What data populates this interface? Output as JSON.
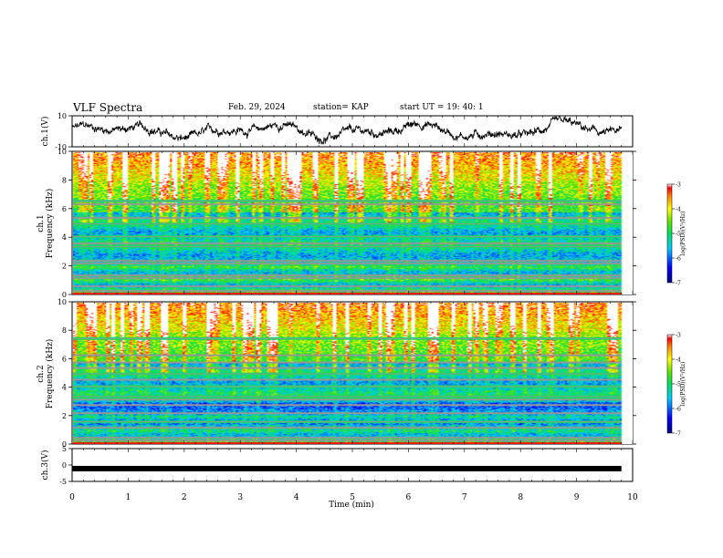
{
  "header": {
    "title": "VLF Spectra",
    "date": "Feb. 29, 2024",
    "station": "station= KAP",
    "start": "start  UT =  19: 40: 1"
  },
  "chart_data": [
    {
      "type": "line",
      "panel": "ch1-waveform",
      "ylabel": "ch.1(V)",
      "ylim": [
        -10,
        10
      ],
      "yticks": [
        "10",
        "-10"
      ],
      "xlim": [
        0,
        10
      ],
      "grid": false
    },
    {
      "type": "heatmap",
      "panel": "ch1-spectrogram",
      "ylabel": "ch.1\nFrequency (kHz)",
      "ylim": [
        0,
        10
      ],
      "yticks": [
        "0",
        "2",
        "4",
        "6",
        "8",
        "10"
      ],
      "xlim": [
        0,
        10
      ],
      "colorbar": {
        "label": "log(PSD)(V²/Hz)",
        "range": [
          -7,
          -3
        ],
        "ticks": [
          "-3",
          "-4",
          "-5",
          "-6",
          "-7"
        ]
      },
      "data_end_min": 9.8
    },
    {
      "type": "heatmap",
      "panel": "ch2-spectrogram",
      "ylabel": "ch.2\nFrequency (kHz)",
      "ylim": [
        0,
        10
      ],
      "yticks": [
        "0",
        "2",
        "4",
        "6",
        "8",
        "10"
      ],
      "xlim": [
        0,
        10
      ],
      "colorbar": {
        "label": "log(PSD)(V²/Hz)",
        "range": [
          -7,
          -3
        ],
        "ticks": [
          "-3",
          "-4",
          "-5",
          "-6",
          "-7"
        ]
      },
      "data_end_min": 9.8
    },
    {
      "type": "line",
      "panel": "ch3-waveform",
      "ylabel": "ch.3(V)",
      "ylim": [
        -5,
        5
      ],
      "yticks": [
        "5",
        "0",
        "-5"
      ],
      "xlim": [
        0,
        10
      ],
      "xlabel": "Time (min)",
      "xticks": [
        "0",
        "1",
        "2",
        "3",
        "4",
        "5",
        "6",
        "7",
        "8",
        "9",
        "10"
      ],
      "level": -1.1
    }
  ]
}
